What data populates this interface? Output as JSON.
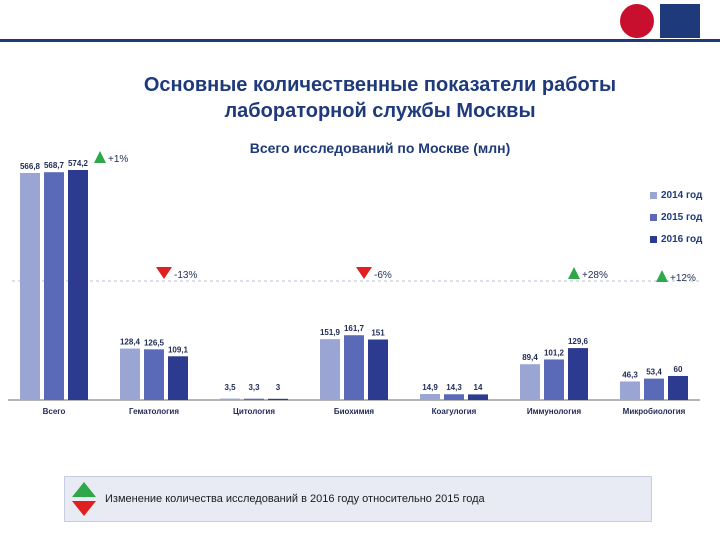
{
  "header": {
    "logo": "moscow-coat-of-arms-icon"
  },
  "title_line1": "Основные количественные показатели работы",
  "title_line2": "лабораторной службы Москвы",
  "chart_data": {
    "type": "bar",
    "title": "Всего исследований по Москве (млн)",
    "categories": [
      "Всего",
      "Гематология",
      "Цитология",
      "Биохимия",
      "Коагулогия",
      "Иммунология",
      "Микробиология"
    ],
    "series": [
      {
        "name": "2014 год",
        "color": "#9aa5d3",
        "values": [
          566.8,
          128.4,
          3.5,
          151.9,
          14.9,
          89.4,
          46.3
        ]
      },
      {
        "name": "2015 год",
        "color": "#5b6ab8",
        "values": [
          568.7,
          126.5,
          3.3,
          161.7,
          14.3,
          101.2,
          53.4
        ]
      },
      {
        "name": "2016 год",
        "color": "#2c3b8f",
        "values": [
          574.2,
          109.1,
          3,
          151,
          14,
          129.6,
          60
        ]
      }
    ],
    "value_labels": [
      [
        "566,8",
        "568,7",
        "574,2"
      ],
      [
        "128,4",
        "126,5",
        "109,1"
      ],
      [
        "3,5",
        "3,3",
        "3"
      ],
      [
        "151,9",
        "161,7",
        "151"
      ],
      [
        "14,9",
        "14,3",
        "14"
      ],
      [
        "89,4",
        "101,2",
        "129,6"
      ],
      [
        "46,3",
        "53,4",
        "60"
      ]
    ],
    "changes": [
      {
        "text": "+1%",
        "direction": "up"
      },
      {
        "text": "-13%",
        "direction": "down"
      },
      {
        "text": "",
        "direction": "none"
      },
      {
        "text": "-6%",
        "direction": "down"
      },
      {
        "text": "",
        "direction": "none"
      },
      {
        "text": "+28%",
        "direction": "up"
      },
      {
        "text": "+12%",
        "direction": "up"
      }
    ],
    "up_color": "#2ea84a",
    "down_color": "#e02020",
    "legend": "right",
    "grid": false
  },
  "footnote": "Изменение количества исследований в 2016 году относительно 2015 года"
}
